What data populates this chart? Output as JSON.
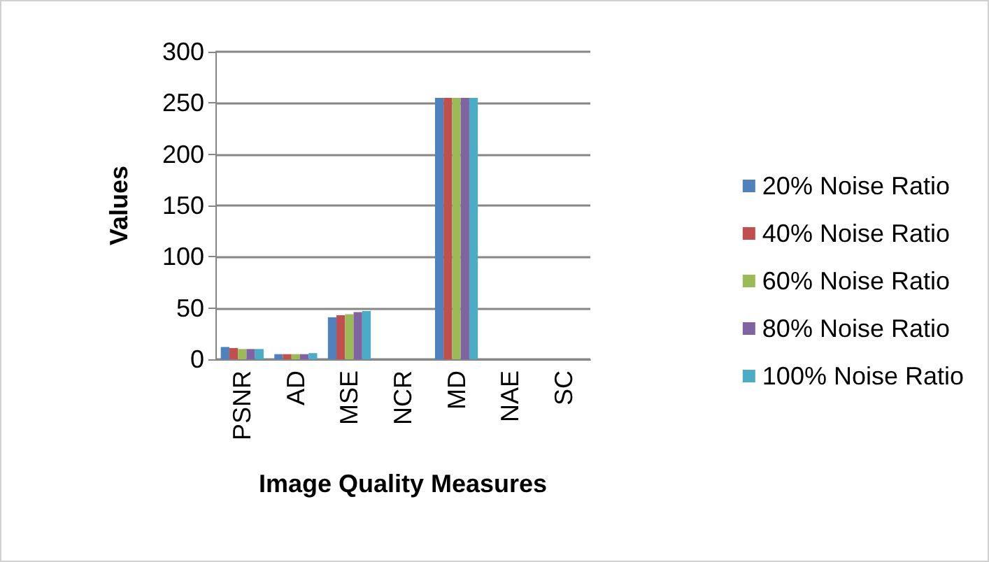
{
  "chart_data": {
    "type": "bar",
    "xlabel": "Image Quality Measures",
    "ylabel": "Values",
    "categories": [
      "PSNR",
      "AD",
      "MSE",
      "NCR",
      "MD",
      "NAE",
      "SC"
    ],
    "series": [
      {
        "name": "20% Noise Ratio",
        "color": "#4f81bd",
        "values": [
          12,
          5,
          41,
          null,
          255,
          null,
          null
        ]
      },
      {
        "name": "40% Noise Ratio",
        "color": "#c0504d",
        "values": [
          11,
          5,
          43,
          null,
          255,
          null,
          null
        ]
      },
      {
        "name": "60% Noise Ratio",
        "color": "#9bbb59",
        "values": [
          10,
          5,
          44,
          null,
          255,
          null,
          null
        ]
      },
      {
        "name": "80% Noise Ratio",
        "color": "#8064a2",
        "values": [
          10,
          5,
          46,
          null,
          255,
          null,
          null
        ]
      },
      {
        "name": "100% Noise Ratio",
        "color": "#4bacc6",
        "values": [
          10,
          6,
          47,
          null,
          255,
          null,
          null
        ]
      }
    ],
    "ylim": [
      0,
      300
    ],
    "yticks": [
      0,
      50,
      100,
      150,
      200,
      250,
      300
    ],
    "grid": "y",
    "legend": "right"
  }
}
